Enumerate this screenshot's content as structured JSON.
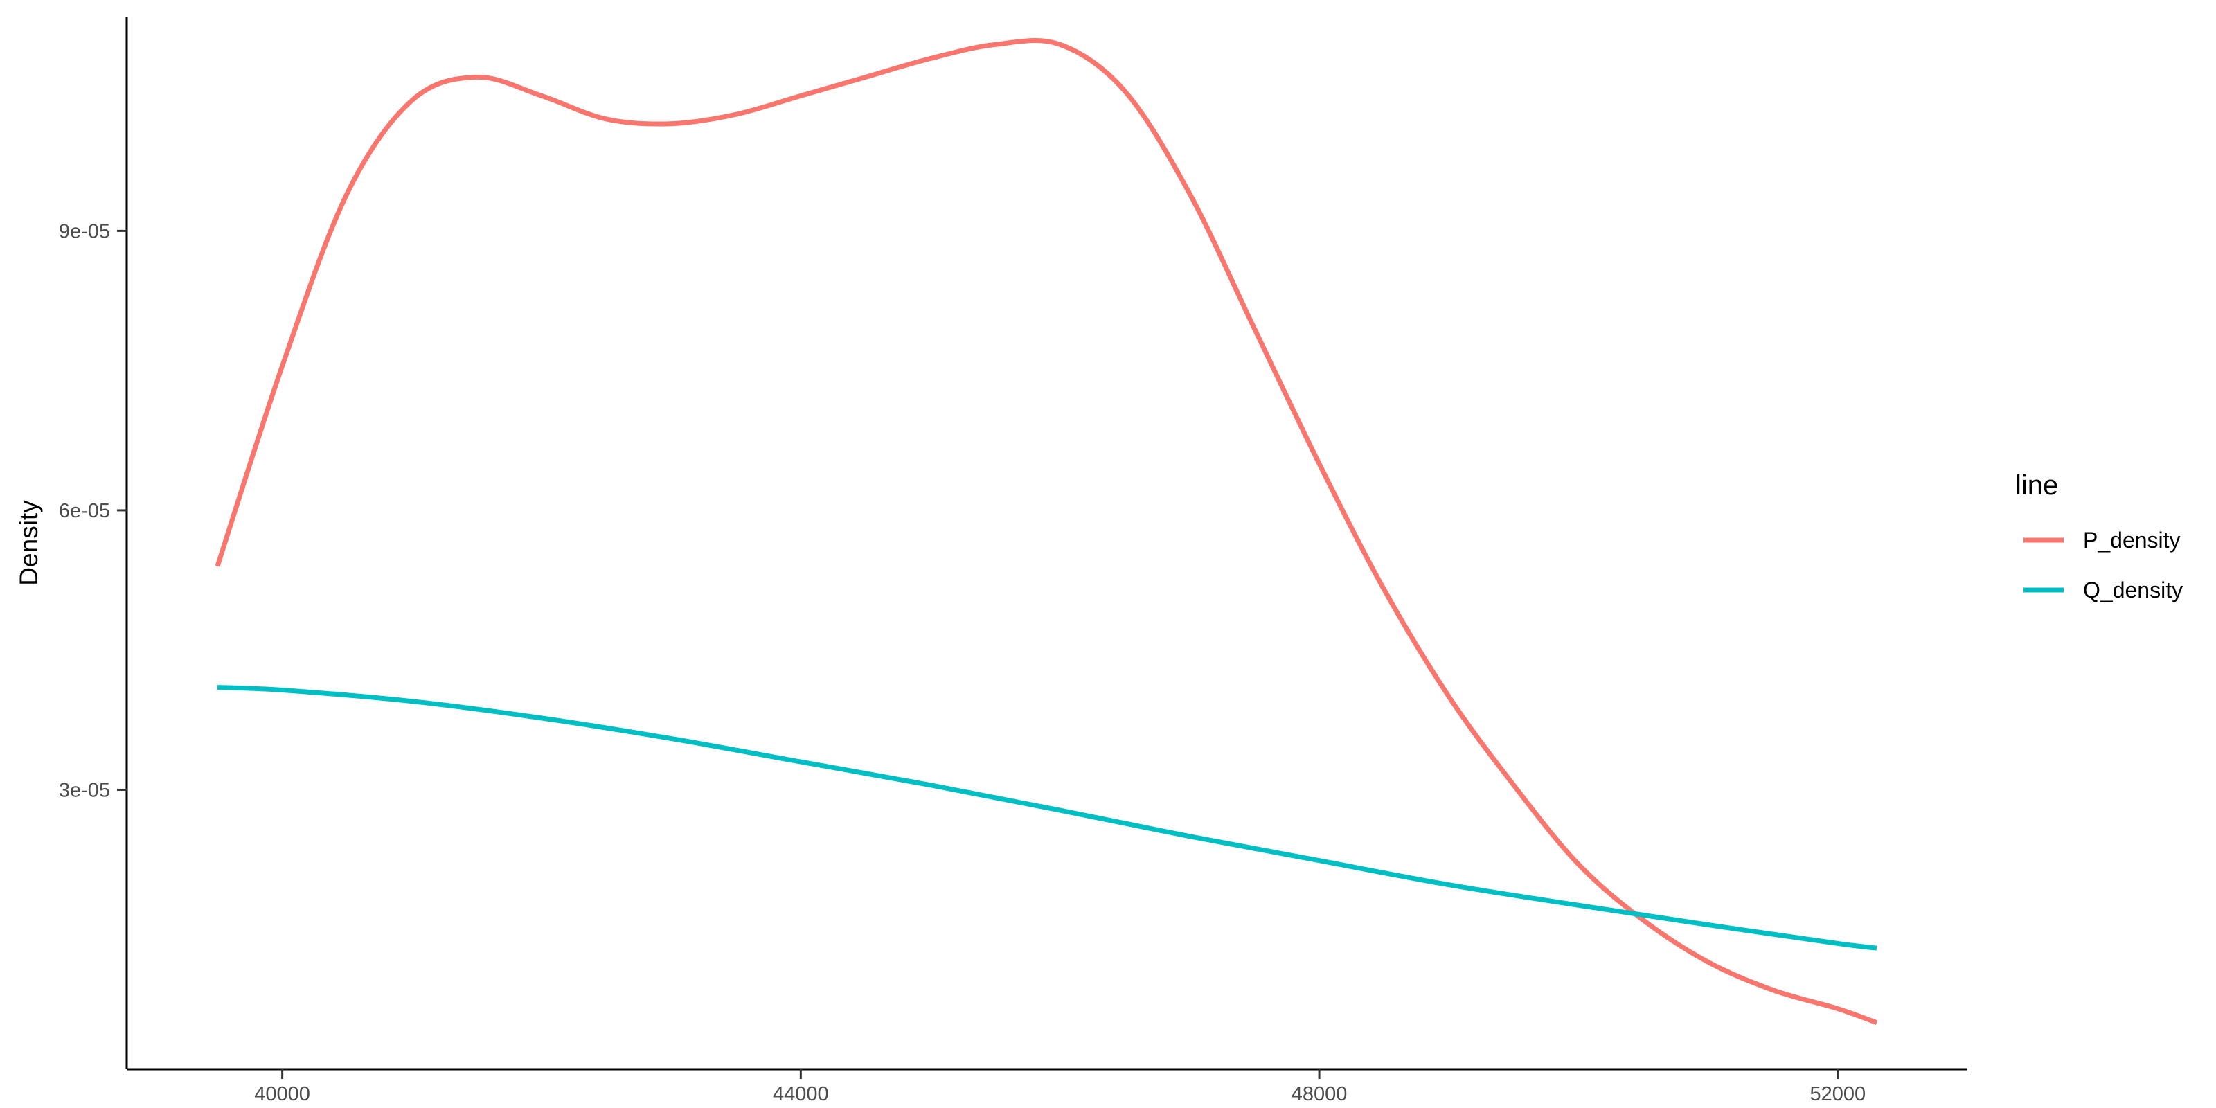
{
  "chart_data": {
    "type": "line",
    "title": "",
    "xlabel": "",
    "ylabel": "Density",
    "xlim": [
      38800,
      53000
    ],
    "ylim": [
      0,
      0.000113
    ],
    "x_ticks": [
      40000,
      44000,
      48000,
      52000
    ],
    "x_tick_labels": [
      "40000",
      "44000",
      "48000",
      "52000"
    ],
    "y_ticks": [
      3e-05,
      6e-05,
      9e-05
    ],
    "y_tick_labels": [
      "3e-05",
      "6e-05",
      "9e-05"
    ],
    "grid": false,
    "legend": {
      "title": "line",
      "position": "right"
    },
    "series": [
      {
        "name": "P_density",
        "color": "#F8766D",
        "x": [
          39500,
          40000,
          40500,
          41000,
          41500,
          42000,
          42500,
          43000,
          43500,
          44000,
          44500,
          45000,
          45500,
          46000,
          46500,
          47000,
          47500,
          48000,
          48500,
          49000,
          49500,
          50000,
          50500,
          51000,
          51500,
          52000,
          52300
        ],
        "y": [
          5.4e-05,
          7.55e-05,
          9.4e-05,
          0.000104,
          0.0001065,
          0.0001045,
          0.000102,
          0.0001015,
          0.0001025,
          0.0001045,
          0.0001065,
          0.0001085,
          0.00011,
          0.00011,
          0.000105,
          9.4e-05,
          7.95e-05,
          6.5e-05,
          5.15e-05,
          4e-05,
          3.05e-05,
          2.2e-05,
          1.6e-05,
          1.15e-05,
          8.5e-06,
          6.5e-06,
          5e-06
        ]
      },
      {
        "name": "Q_density",
        "color": "#00BFC4",
        "x": [
          39500,
          40000,
          41000,
          42000,
          43000,
          44000,
          45000,
          46000,
          47000,
          48000,
          49000,
          50000,
          51000,
          52000,
          52300
        ],
        "y": [
          4.1e-05,
          4.07e-05,
          3.95e-05,
          3.77e-05,
          3.55e-05,
          3.3e-05,
          3.05e-05,
          2.78e-05,
          2.5e-05,
          2.24e-05,
          1.98e-05,
          1.76e-05,
          1.55e-05,
          1.35e-05,
          1.3e-05
        ]
      }
    ]
  }
}
